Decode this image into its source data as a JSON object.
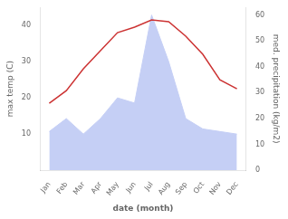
{
  "chart_data": {
    "type": "line",
    "categories": [
      "Jan",
      "Feb",
      "Mar",
      "Apr",
      "May",
      "Jun",
      "Jul",
      "Aug",
      "Sep",
      "Oct",
      "Nov",
      "Dec"
    ],
    "series": [
      {
        "type": "area",
        "color": "#c5cff5",
        "axis": "y2",
        "values": [
          15,
          20,
          14,
          20,
          28,
          26,
          60,
          42,
          20,
          16,
          15,
          14
        ]
      },
      {
        "type": "line",
        "color": "#cc3333",
        "values": [
          18.5,
          22,
          28,
          33,
          38,
          39.5,
          41.5,
          41,
          37,
          32,
          25,
          22.5
        ]
      }
    ],
    "xlabel": "date (month)",
    "ylabel": "max temp (C)",
    "y2label": "med. precipitation (kg/m2)",
    "ylim": [
      0,
      45
    ],
    "yticks": [
      10,
      20,
      30,
      40
    ],
    "y2lim": [
      0,
      63
    ],
    "y2ticks": [
      0,
      10,
      20,
      30,
      40,
      50,
      60
    ],
    "grid": false
  }
}
